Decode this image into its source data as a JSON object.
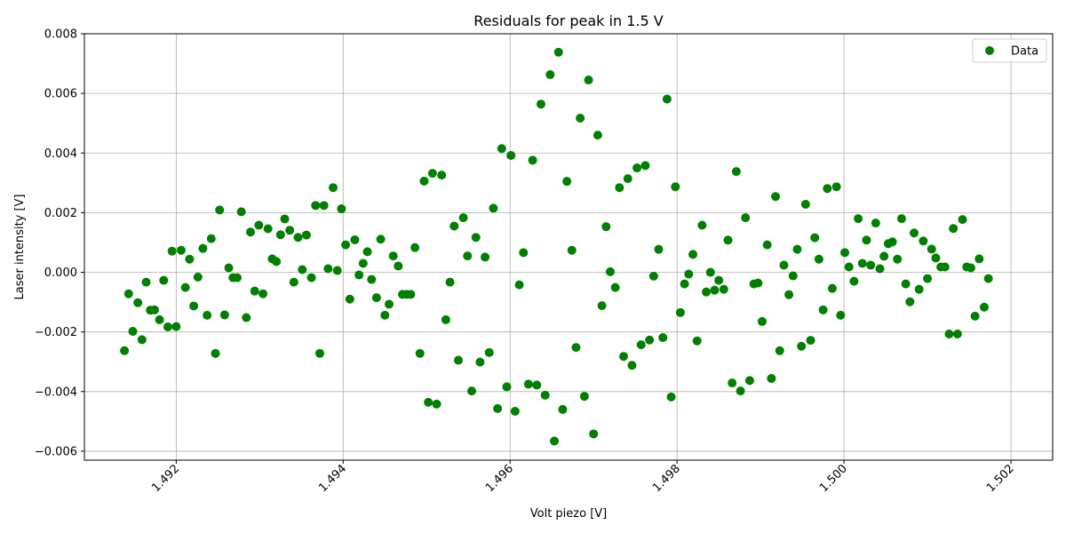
{
  "chart_data": {
    "type": "scatter",
    "title": "Residuals for peak in 1.5 V",
    "xlabel": "Volt piezo [V]",
    "ylabel": "Laser intensity [V]",
    "xlim": [
      1.4909,
      1.5025
    ],
    "ylim": [
      -0.0063,
      0.008
    ],
    "xticks": [
      {
        "value": 1.492,
        "label": "1.492"
      },
      {
        "value": 1.494,
        "label": "1.494"
      },
      {
        "value": 1.496,
        "label": "1.496"
      },
      {
        "value": 1.498,
        "label": "1.498"
      },
      {
        "value": 1.5,
        "label": "1.500"
      },
      {
        "value": 1.502,
        "label": "1.502"
      }
    ],
    "yticks": [
      {
        "value": -0.006,
        "label": "−0.006"
      },
      {
        "value": -0.004,
        "label": "−0.004"
      },
      {
        "value": -0.002,
        "label": "−0.002"
      },
      {
        "value": 0.0,
        "label": "0.000"
      },
      {
        "value": 0.002,
        "label": "0.002"
      },
      {
        "value": 0.004,
        "label": "0.004"
      },
      {
        "value": 0.006,
        "label": "0.006"
      },
      {
        "value": 0.008,
        "label": "0.008"
      }
    ],
    "grid": true,
    "legend_position": "top-right",
    "series": [
      {
        "name": "Data",
        "color": "#008000",
        "points": [
          [
            1.49138,
            -0.00263
          ],
          [
            1.49143,
            -0.00072
          ],
          [
            1.49148,
            -0.00198
          ],
          [
            1.49154,
            -0.00102
          ],
          [
            1.49159,
            -0.00226
          ],
          [
            1.49164,
            -0.00033
          ],
          [
            1.49169,
            -0.00127
          ],
          [
            1.49174,
            -0.00126
          ],
          [
            1.4918,
            -0.00159
          ],
          [
            1.49185,
            -0.00027
          ],
          [
            1.4919,
            -0.00183
          ],
          [
            1.49195,
            0.00071
          ],
          [
            1.492,
            -0.00182
          ],
          [
            1.49206,
            0.00074
          ],
          [
            1.49211,
            -0.00051
          ],
          [
            1.49216,
            0.00044
          ],
          [
            1.49221,
            -0.00113
          ],
          [
            1.49226,
            -0.00016
          ],
          [
            1.49232,
            0.0008
          ],
          [
            1.49237,
            -0.00144
          ],
          [
            1.49242,
            0.00113
          ],
          [
            1.49247,
            -0.00272
          ],
          [
            1.49252,
            0.00209
          ],
          [
            1.49258,
            -0.00143
          ],
          [
            1.49263,
            0.00015
          ],
          [
            1.49268,
            -0.00018
          ],
          [
            1.49273,
            -0.00018
          ],
          [
            1.49278,
            0.00203
          ],
          [
            1.49284,
            -0.00152
          ],
          [
            1.49289,
            0.00135
          ],
          [
            1.49294,
            -0.00063
          ],
          [
            1.49299,
            0.00158
          ],
          [
            1.49304,
            -0.00072
          ],
          [
            1.4931,
            0.00146
          ],
          [
            1.49315,
            0.00045
          ],
          [
            1.4932,
            0.00036
          ],
          [
            1.49325,
            0.00126
          ],
          [
            1.4933,
            0.00179
          ],
          [
            1.49336,
            0.00141
          ],
          [
            1.49341,
            -0.00033
          ],
          [
            1.49346,
            0.00117
          ],
          [
            1.49351,
            9e-05
          ],
          [
            1.49356,
            0.00125
          ],
          [
            1.49362,
            -0.00018
          ],
          [
            1.49367,
            0.00224
          ],
          [
            1.49372,
            -0.00272
          ],
          [
            1.49377,
            0.00224
          ],
          [
            1.49382,
            0.00012
          ],
          [
            1.49388,
            0.00284
          ],
          [
            1.49393,
            6e-05
          ],
          [
            1.49398,
            0.00213
          ],
          [
            1.49403,
            0.00092
          ],
          [
            1.49408,
            -0.0009
          ],
          [
            1.49414,
            0.00109
          ],
          [
            1.49419,
            -9e-05
          ],
          [
            1.49424,
            0.0003
          ],
          [
            1.49429,
            0.00069
          ],
          [
            1.49434,
            -0.00024
          ],
          [
            1.4944,
            -0.00085
          ],
          [
            1.49445,
            0.00111
          ],
          [
            1.4945,
            -0.00144
          ],
          [
            1.49455,
            -0.00107
          ],
          [
            1.4946,
            0.00055
          ],
          [
            1.49466,
            0.00021
          ],
          [
            1.49471,
            -0.00074
          ],
          [
            1.49476,
            -0.00074
          ],
          [
            1.49481,
            -0.00074
          ],
          [
            1.49486,
            0.00083
          ],
          [
            1.49492,
            -0.00272
          ],
          [
            1.49497,
            0.00306
          ],
          [
            1.49502,
            -0.00436
          ],
          [
            1.49507,
            0.00332
          ],
          [
            1.49512,
            -0.00442
          ],
          [
            1.49518,
            0.00326
          ],
          [
            1.49523,
            -0.00159
          ],
          [
            1.49528,
            -0.00033
          ],
          [
            1.49533,
            0.00155
          ],
          [
            1.49538,
            -0.00295
          ],
          [
            1.49544,
            0.00183
          ],
          [
            1.49549,
            0.00055
          ],
          [
            1.49554,
            -0.00398
          ],
          [
            1.49559,
            0.00117
          ],
          [
            1.49564,
            -0.00301
          ],
          [
            1.4957,
            0.00051
          ],
          [
            1.49575,
            -0.00269
          ],
          [
            1.4958,
            0.00215
          ],
          [
            1.49585,
            -0.00457
          ],
          [
            1.4959,
            0.00415
          ],
          [
            1.49596,
            -0.00384
          ],
          [
            1.49601,
            0.00392
          ],
          [
            1.49606,
            -0.00466
          ],
          [
            1.49611,
            -0.00042
          ],
          [
            1.49616,
            0.00066
          ],
          [
            1.49622,
            -0.00375
          ],
          [
            1.49627,
            0.00376
          ],
          [
            1.49632,
            -0.00378
          ],
          [
            1.49637,
            0.00564
          ],
          [
            1.49642,
            -0.00412
          ],
          [
            1.49648,
            0.00663
          ],
          [
            1.49653,
            -0.00566
          ],
          [
            1.49658,
            0.00738
          ],
          [
            1.49663,
            -0.0046
          ],
          [
            1.49668,
            0.00305
          ],
          [
            1.49674,
            0.00074
          ],
          [
            1.49679,
            -0.00252
          ],
          [
            1.49684,
            0.00517
          ],
          [
            1.49689,
            -0.00416
          ],
          [
            1.49694,
            0.00645
          ],
          [
            1.497,
            -0.00542
          ],
          [
            1.49705,
            0.0046
          ],
          [
            1.4971,
            -0.00112
          ],
          [
            1.49715,
            0.00153
          ],
          [
            1.4972,
            2e-05
          ],
          [
            1.49726,
            -0.00051
          ],
          [
            1.49731,
            0.00284
          ],
          [
            1.49736,
            -0.00282
          ],
          [
            1.49741,
            0.00314
          ],
          [
            1.49746,
            -0.00312
          ],
          [
            1.49752,
            0.0035
          ],
          [
            1.49757,
            -0.00243
          ],
          [
            1.49762,
            0.00358
          ],
          [
            1.49767,
            -0.00227
          ],
          [
            1.49772,
            -0.00013
          ],
          [
            1.49778,
            0.00077
          ],
          [
            1.49783,
            -0.00219
          ],
          [
            1.49788,
            0.00581
          ],
          [
            1.49793,
            -0.00418
          ],
          [
            1.49798,
            0.00287
          ],
          [
            1.49804,
            -0.00135
          ],
          [
            1.49809,
            -0.00039
          ],
          [
            1.49814,
            -6e-05
          ],
          [
            1.49819,
            0.0006
          ],
          [
            1.49824,
            -0.0023
          ],
          [
            1.4983,
            0.00158
          ],
          [
            1.49835,
            -0.00066
          ],
          [
            1.4984,
            0.0
          ],
          [
            1.49845,
            -0.0006
          ],
          [
            1.4985,
            -0.00027
          ],
          [
            1.49856,
            -0.00057
          ],
          [
            1.49861,
            0.00108
          ],
          [
            1.49866,
            -0.00371
          ],
          [
            1.49871,
            0.00338
          ],
          [
            1.49876,
            -0.00398
          ],
          [
            1.49882,
            0.00183
          ],
          [
            1.49887,
            -0.00363
          ],
          [
            1.49892,
            -0.00039
          ],
          [
            1.49897,
            -0.00036
          ],
          [
            1.49902,
            -0.00165
          ],
          [
            1.49908,
            0.00092
          ],
          [
            1.49913,
            -0.00356
          ],
          [
            1.49918,
            0.00254
          ],
          [
            1.49923,
            -0.00263
          ],
          [
            1.49928,
            0.00024
          ],
          [
            1.49934,
            -0.00075
          ],
          [
            1.49939,
            -0.00012
          ],
          [
            1.49944,
            0.00077
          ],
          [
            1.49949,
            -0.00248
          ],
          [
            1.49954,
            0.00228
          ],
          [
            1.4996,
            -0.00228
          ],
          [
            1.49965,
            0.00116
          ],
          [
            1.4997,
            0.00044
          ],
          [
            1.49975,
            -0.00126
          ],
          [
            1.4998,
            0.00281
          ],
          [
            1.49986,
            -0.00054
          ],
          [
            1.49991,
            0.00287
          ],
          [
            1.49996,
            -0.00144
          ],
          [
            1.50001,
            0.00066
          ],
          [
            1.50006,
            0.00018
          ],
          [
            1.50012,
            -0.0003
          ],
          [
            1.50017,
            0.0018
          ],
          [
            1.50022,
            0.0003
          ],
          [
            1.50027,
            0.00108
          ],
          [
            1.50032,
            0.00024
          ],
          [
            1.50038,
            0.00165
          ],
          [
            1.50043,
            0.00012
          ],
          [
            1.50048,
            0.00054
          ],
          [
            1.50053,
            0.00096
          ],
          [
            1.50058,
            0.00102
          ],
          [
            1.50064,
            0.00044
          ],
          [
            1.50069,
            0.0018
          ],
          [
            1.50074,
            -0.00039
          ],
          [
            1.50079,
            -0.00099
          ],
          [
            1.50084,
            0.00132
          ],
          [
            1.5009,
            -0.00057
          ],
          [
            1.50095,
            0.00105
          ],
          [
            1.501,
            -0.00021
          ],
          [
            1.50105,
            0.00078
          ],
          [
            1.5011,
            0.00048
          ],
          [
            1.50116,
            0.00018
          ],
          [
            1.50121,
            0.00018
          ],
          [
            1.50126,
            -0.00207
          ],
          [
            1.50131,
            0.00147
          ],
          [
            1.50136,
            -0.00207
          ],
          [
            1.50142,
            0.00177
          ],
          [
            1.50147,
            0.00018
          ],
          [
            1.50152,
            0.00015
          ],
          [
            1.50157,
            -0.00147
          ],
          [
            1.50162,
            0.00045
          ],
          [
            1.50168,
            -0.00117
          ],
          [
            1.50173,
            -0.00021
          ]
        ]
      }
    ]
  }
}
